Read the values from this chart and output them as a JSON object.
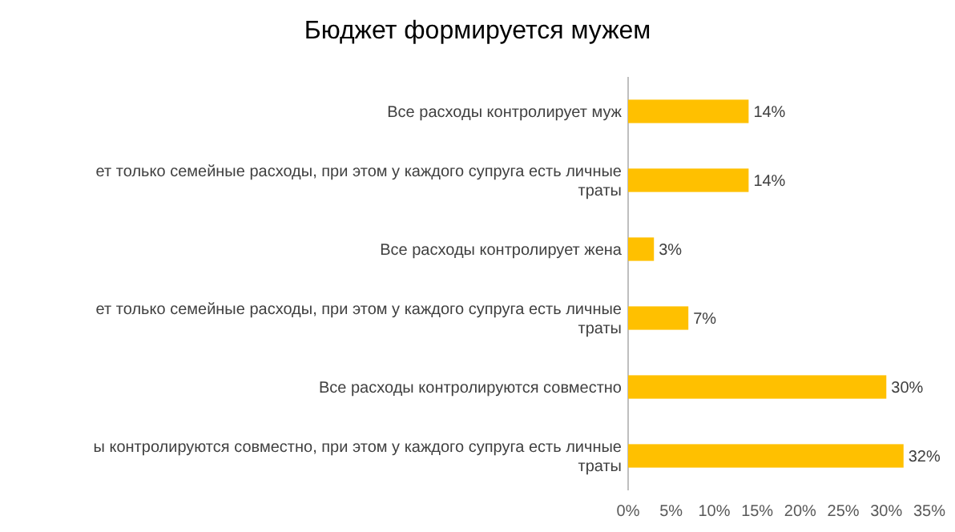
{
  "chart_data": {
    "type": "bar",
    "orientation": "horizontal",
    "title": "Бюджет формируется мужем",
    "categories": [
      "Все расходы контролирует муж",
      "ет только семейные расходы, при этом у каждого супруга есть личные траты",
      "Все расходы контролирует жена",
      "ет только семейные расходы, при этом у каждого супруга есть личные траты",
      "Все расходы контролируются совместно",
      "ы контролируются совместно, при этом у каждого супруга есть личные траты"
    ],
    "values": [
      14,
      14,
      3,
      7,
      30,
      32
    ],
    "value_labels": [
      "14%",
      "14%",
      "3%",
      "7%",
      "30%",
      "32%"
    ],
    "color": "#ffc000",
    "xlim": [
      0,
      35
    ],
    "xticks": [
      {
        "value": 0,
        "label": "0%"
      },
      {
        "value": 5,
        "label": "5%"
      },
      {
        "value": 10,
        "label": "10%"
      },
      {
        "value": 15,
        "label": "15%"
      },
      {
        "value": 20,
        "label": "20%"
      },
      {
        "value": 25,
        "label": "25%"
      },
      {
        "value": 30,
        "label": "30%"
      },
      {
        "value": 35,
        "label": "35%"
      }
    ],
    "grid": false
  }
}
